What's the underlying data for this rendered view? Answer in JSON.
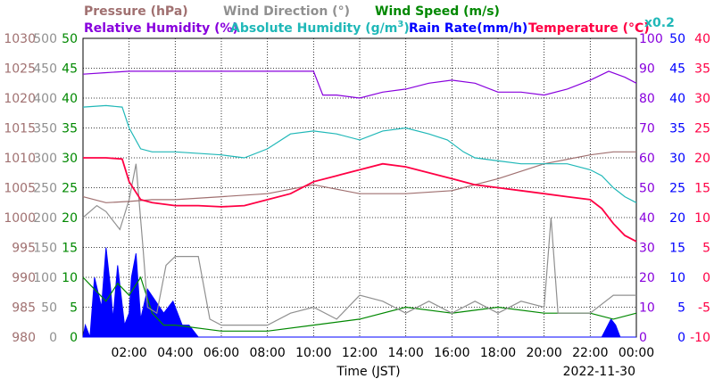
{
  "chart_data": {
    "type": "line",
    "legend": {
      "pressure": "Pressure (hPa)",
      "wind_direction": "Wind Direction (°)",
      "wind_speed": "Wind Speed (m/s)",
      "rel_humidity": "Relative Humidity (%)",
      "abs_humidity_prefix": "Absolute Humidity (g/m",
      "abs_humidity_sup": "3",
      "abs_humidity_suffix": ")",
      "rain_rate": "Rain Rate(mm/h)",
      "temperature": "Temperature (°C)",
      "rain_scale": "x0.2"
    },
    "xlabel": "Time (JST)",
    "date": "2022-11-30",
    "x_ticks": [
      "02:00",
      "04:00",
      "06:00",
      "08:00",
      "10:00",
      "12:00",
      "14:00",
      "16:00",
      "18:00",
      "20:00",
      "22:00",
      "00:00"
    ],
    "axes": {
      "pressure": [
        "1030",
        "1025",
        "1020",
        "1015",
        "1010",
        "1005",
        "1000",
        "995",
        "990",
        "985",
        "980"
      ],
      "wind_direction": [
        "500",
        "450",
        "400",
        "350",
        "300",
        "250",
        "200",
        "150",
        "100",
        "50",
        "0"
      ],
      "wind_speed": [
        "50",
        "45",
        "40",
        "35",
        "30",
        "25",
        "20",
        "15",
        "10",
        "5",
        "0"
      ],
      "rel_humidity": [
        "100",
        "90",
        "80",
        "70",
        "60",
        "50",
        "40",
        "30",
        "20",
        "10",
        "0"
      ],
      "rain_rate": [
        "50",
        "45",
        "40",
        "35",
        "30",
        "25",
        "20",
        "15",
        "10",
        "5",
        "0"
      ],
      "temperature": [
        "40",
        "35",
        "30",
        "25",
        "20",
        "15",
        "10",
        "5",
        "0",
        "-5",
        "-10"
      ]
    },
    "x_unit": "hours since 00:00",
    "series": [
      {
        "name": "Pressure (hPa)",
        "color": "#a07070",
        "x": [
          0,
          1,
          2,
          3,
          4,
          6,
          8,
          10,
          12,
          14,
          16,
          18,
          20,
          22,
          23,
          24
        ],
        "y": [
          1003.5,
          1002.5,
          1002.7,
          1003,
          1003,
          1003.5,
          1004,
          1005.5,
          1004,
          1004,
          1004.5,
          1006.5,
          1009,
          1010.5,
          1011,
          1011
        ]
      },
      {
        "name": "Wind Direction (°)",
        "color": "#909090",
        "x": [
          0,
          0.6,
          1,
          1.6,
          2,
          2.3,
          2.6,
          2.8,
          3.2,
          3.6,
          4,
          5,
          5.5,
          6,
          7,
          8,
          9,
          10,
          11,
          12,
          13,
          14,
          15,
          16,
          17,
          18,
          19,
          20,
          20.3,
          20.6,
          21,
          22,
          23,
          24
        ],
        "y": [
          200,
          220,
          210,
          180,
          230,
          290,
          150,
          50,
          40,
          120,
          135,
          135,
          30,
          20,
          20,
          20,
          40,
          50,
          30,
          70,
          60,
          40,
          60,
          40,
          60,
          40,
          60,
          50,
          200,
          40,
          40,
          40,
          70,
          70
        ]
      },
      {
        "name": "Wind Speed (m/s)",
        "color": "#008800",
        "x": [
          0,
          0.5,
          1,
          1.5,
          2,
          2.5,
          3,
          3.5,
          4,
          6,
          8,
          10,
          12,
          14,
          16,
          18,
          20,
          22,
          23,
          24
        ],
        "y": [
          10,
          8,
          6,
          9,
          7,
          10,
          4,
          2,
          2,
          1,
          1,
          2,
          3,
          5,
          4,
          5,
          4,
          4,
          3,
          4
        ]
      },
      {
        "name": "Relative Humidity (%)",
        "color": "#8800dd",
        "x": [
          0,
          1,
          2,
          4,
          6,
          8,
          10,
          10.4,
          11,
          12,
          13,
          14,
          15,
          16,
          17,
          18,
          19,
          20,
          21,
          22,
          22.8,
          23.5,
          24
        ],
        "y": [
          88,
          88.5,
          89,
          89,
          89,
          89,
          89,
          81,
          81,
          80,
          82,
          83,
          85,
          86,
          85,
          82,
          82,
          81,
          83,
          86,
          89,
          87,
          85
        ]
      },
      {
        "name": "Absolute Humidity (g/m3)",
        "color": "#20b8b8",
        "x": [
          0,
          1,
          1.7,
          2,
          2.5,
          3,
          4,
          6,
          7,
          8,
          9,
          10,
          11,
          12,
          13,
          14,
          15,
          15.8,
          16.5,
          17,
          18,
          19,
          20,
          21,
          22,
          22.5,
          23,
          23.5,
          24
        ],
        "y": [
          77,
          77.5,
          77,
          70,
          63,
          62,
          62,
          61,
          60,
          63,
          68,
          69,
          68,
          66,
          69,
          70,
          68,
          66,
          62,
          60,
          59,
          58,
          58,
          58,
          56,
          54,
          50,
          47,
          45
        ]
      },
      {
        "name": "Temperature (°C)",
        "color": "#ff0044",
        "x": [
          0,
          1,
          1.7,
          2,
          2.5,
          3,
          4,
          5,
          6,
          7,
          8,
          9,
          10,
          11,
          12,
          13,
          14,
          15,
          16,
          17,
          18,
          19,
          20,
          21,
          22,
          22.5,
          23,
          23.5,
          24
        ],
        "y": [
          20,
          20,
          19.8,
          16,
          13,
          12.5,
          12,
          12,
          11.8,
          12,
          13,
          14,
          16,
          17,
          18,
          19,
          18.5,
          17.5,
          16.5,
          15.5,
          15,
          14.5,
          14,
          13.5,
          13,
          11.5,
          9,
          7,
          6
        ]
      },
      {
        "name": "Rain Rate(mm/h)",
        "color": "#0000ff",
        "x": [
          0,
          0.1,
          0.3,
          0.5,
          0.8,
          1,
          1.2,
          1.3,
          1.5,
          1.8,
          2,
          2.1,
          2.3,
          2.5,
          2.8,
          3.5,
          3.9,
          4.3,
          4.6,
          5,
          22.5,
          22.9,
          23.1,
          23.3,
          24
        ],
        "y": [
          0,
          2,
          0,
          10,
          5,
          15,
          8,
          3,
          12,
          2,
          4,
          10,
          14,
          3,
          8,
          4,
          6,
          2,
          2,
          0,
          0,
          3,
          2,
          0,
          0
        ]
      }
    ]
  }
}
